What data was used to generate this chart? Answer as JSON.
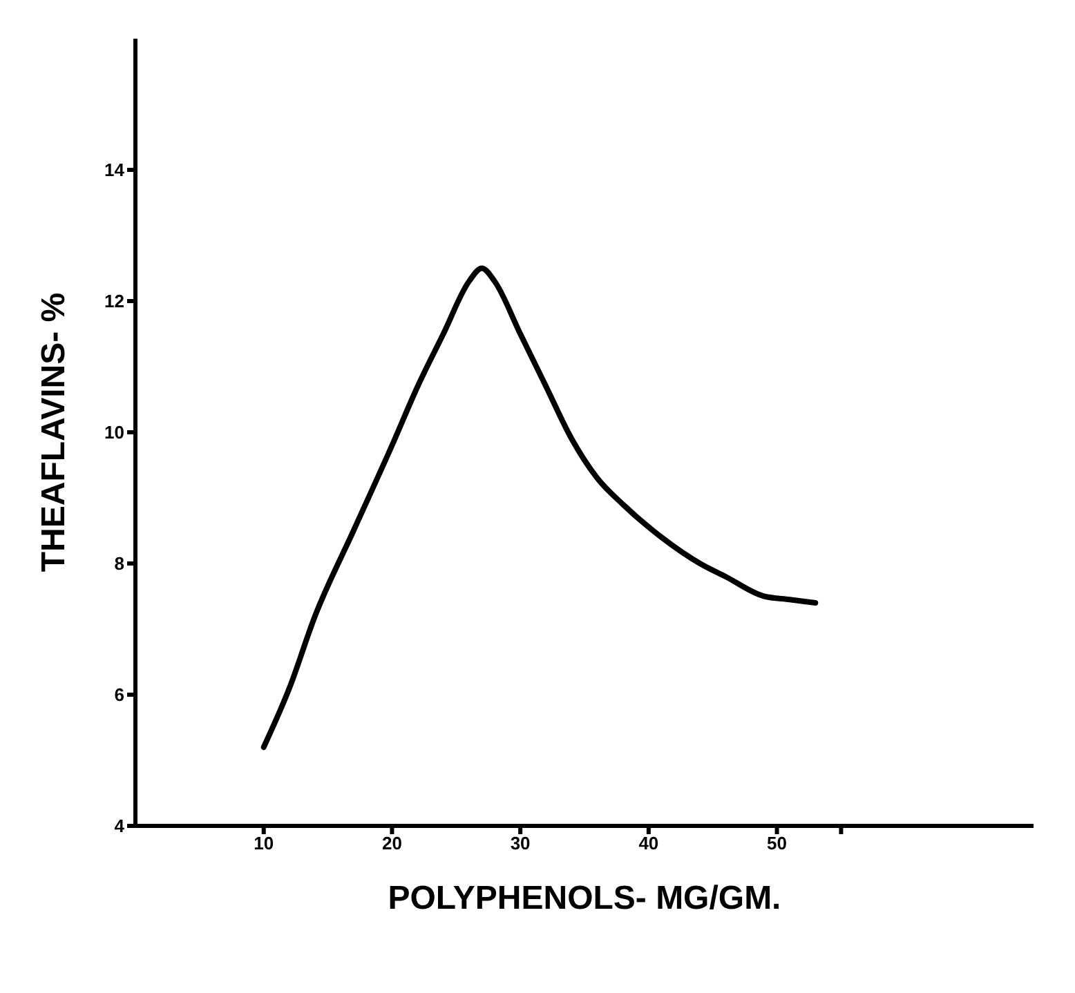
{
  "chart_data": {
    "type": "line",
    "xlabel": "POLYPHENOLS- MG/GM.",
    "ylabel": "THEAFLAVINS- %",
    "x": [
      10,
      12,
      14,
      17,
      20,
      22,
      24,
      26,
      27,
      28,
      30,
      32,
      34,
      36,
      38,
      41,
      44,
      46,
      49,
      51,
      53
    ],
    "series": [
      {
        "color": "#000000",
        "values": [
          5.2,
          6.1,
          7.2,
          8.5,
          9.8,
          10.7,
          11.5,
          12.3,
          12.5,
          12.3,
          11.5,
          10.7,
          9.9,
          9.3,
          8.9,
          8.4,
          8.0,
          7.8,
          7.5,
          7.45,
          7.4
        ]
      }
    ],
    "xlim": [
      0,
      70
    ],
    "xticks": [
      10,
      20,
      30,
      40,
      50,
      {
        "value": 55,
        "label": null
      }
    ],
    "ylim": [
      4,
      16
    ],
    "yticks": [
      4,
      6,
      8,
      10,
      12,
      14
    ],
    "grid": false,
    "legend": false,
    "marker": "none",
    "line_style": "solid"
  }
}
